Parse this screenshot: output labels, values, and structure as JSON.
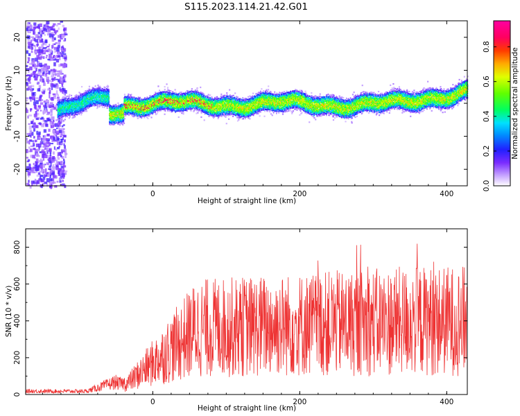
{
  "title": "S115.2023.114.21.42.G01",
  "chart_data": [
    {
      "type": "heatmap",
      "xlabel": "Height of straight line (km)",
      "ylabel": "Frequency (Hz)",
      "xlim": [
        -173,
        428
      ],
      "ylim": [
        -25,
        25
      ],
      "xticks": [
        0,
        200,
        400
      ],
      "yticks": [
        -20,
        -10,
        0,
        10,
        20
      ],
      "ytick_labels": [
        "-20",
        "-10",
        "0",
        "10",
        "20"
      ],
      "colorbar": {
        "label": "Normalized spectral amplitude",
        "range": [
          0.0,
          0.95
        ],
        "ticks": [
          0.0,
          0.2,
          0.4,
          0.6,
          0.8
        ],
        "tick_labels": [
          "0.0",
          "0.2",
          "0.4",
          "0.6",
          "0.8"
        ]
      }
    },
    {
      "type": "line",
      "xlabel": "Height of straight line (km)",
      "ylabel": "SNR (10 * v/v)",
      "xlim": [
        -173,
        428
      ],
      "ylim": [
        0,
        900
      ],
      "xticks": [
        0,
        200,
        400
      ],
      "yticks": [
        0,
        200,
        400,
        600,
        800
      ],
      "ytick_labels": [
        "0",
        "200",
        "400",
        "600",
        "800"
      ],
      "series_color": "#ee3333"
    }
  ]
}
